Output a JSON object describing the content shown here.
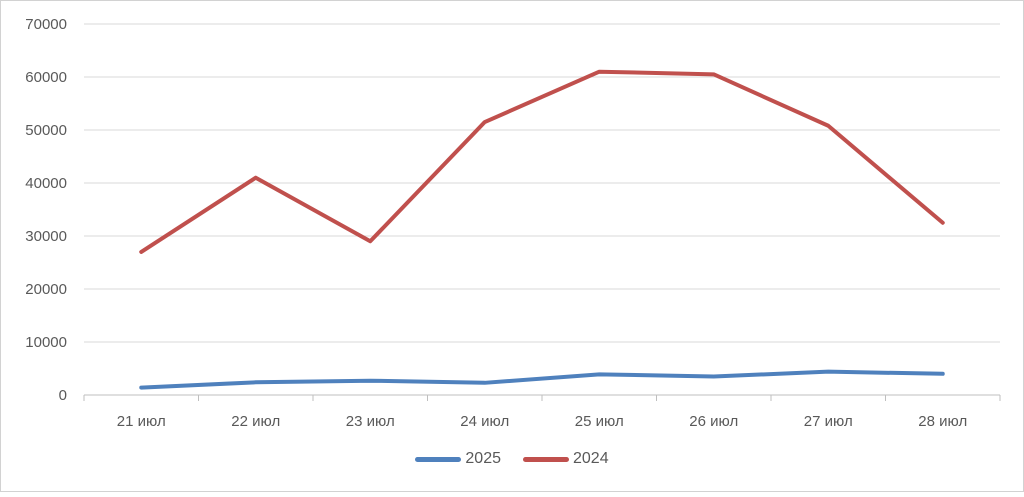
{
  "chart_data": {
    "type": "line",
    "categories": [
      "21 июл",
      "22 июл",
      "23 июл",
      "24 июл",
      "25 июл",
      "26 июл",
      "27 июл",
      "28 июл"
    ],
    "series": [
      {
        "name": "2025",
        "color": "#4F81BD",
        "values": [
          1400,
          2400,
          2700,
          2300,
          3900,
          3500,
          4400,
          4000
        ]
      },
      {
        "name": "2024",
        "color": "#C0504D",
        "values": [
          27000,
          41000,
          29000,
          51500,
          61000,
          60500,
          50800,
          32500
        ]
      }
    ],
    "xlabel": "",
    "ylabel": "",
    "ylim": [
      0,
      70000
    ],
    "ytick_step": 10000,
    "ytick_labels": [
      "0",
      "10000",
      "20000",
      "30000",
      "40000",
      "50000",
      "60000",
      "70000"
    ],
    "grid": true,
    "legend_position": "bottom",
    "colors": {
      "axis_text": "#595959",
      "gridline": "#d9d9d9",
      "axis_line": "#bfbfbf",
      "frame_border": "#d2d2d2"
    }
  }
}
